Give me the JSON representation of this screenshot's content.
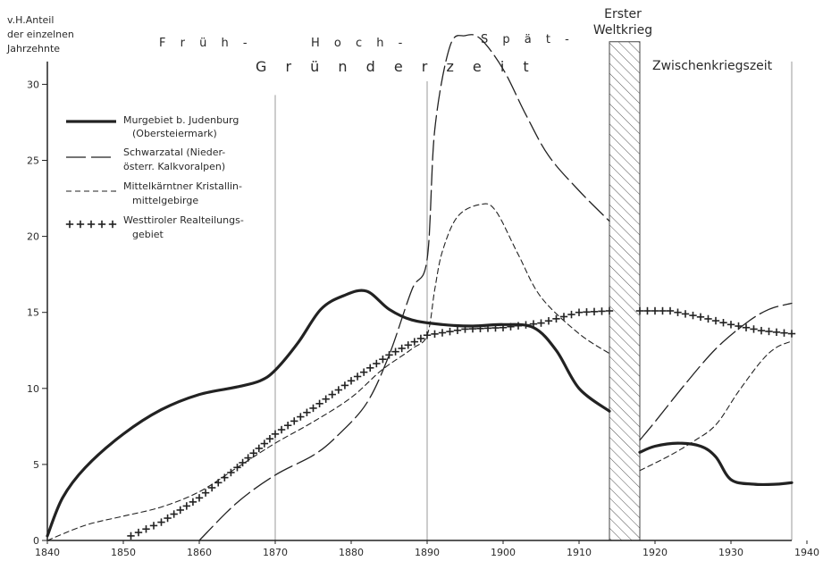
{
  "chart_data": {
    "type": "line",
    "ylabel_lines": [
      "v.H.Anteil",
      "der einzelnen",
      "Jahrzehnte"
    ],
    "xlim": [
      1840,
      1940
    ],
    "ylim": [
      0,
      33
    ],
    "x_ticks": [
      1840,
      1850,
      1860,
      1870,
      1880,
      1890,
      1900,
      1910,
      1920,
      1930,
      1940
    ],
    "y_ticks": [
      0,
      5,
      10,
      15,
      20,
      25,
      30
    ],
    "period_labels": {
      "frueh": "F r ü h -",
      "hoch": "H o c h -",
      "spaet": "S p ä t -",
      "gruenderzeit": "G r ü n d e r z e i t",
      "krieg_line1": "Erster",
      "krieg_line2": "Weltkrieg",
      "zwischen": "Zwischenkriegszeit"
    },
    "period_lines": [
      1870,
      1890
    ],
    "war_period": [
      1914,
      1918
    ],
    "series": [
      {
        "name_lines": [
          "Murgebiet b. Judenburg",
          "(Obersteiermark)"
        ],
        "style": "solid",
        "segments": [
          [
            [
              1840,
              0.3
            ],
            [
              1842,
              2.8
            ],
            [
              1845,
              4.8
            ],
            [
              1850,
              7.0
            ],
            [
              1855,
              8.6
            ],
            [
              1860,
              9.6
            ],
            [
              1865,
              10.1
            ],
            [
              1868,
              10.5
            ],
            [
              1870,
              11.2
            ],
            [
              1873,
              13.0
            ],
            [
              1876,
              15.2
            ],
            [
              1879,
              16.1
            ],
            [
              1882,
              16.4
            ],
            [
              1885,
              15.2
            ],
            [
              1888,
              14.5
            ],
            [
              1892,
              14.2
            ],
            [
              1896,
              14.1
            ],
            [
              1900,
              14.2
            ],
            [
              1904,
              14.0
            ],
            [
              1907,
              12.5
            ],
            [
              1910,
              10.0
            ],
            [
              1914,
              8.5
            ]
          ],
          [
            [
              1918,
              5.8
            ],
            [
              1920,
              6.2
            ],
            [
              1923,
              6.4
            ],
            [
              1926,
              6.2
            ],
            [
              1928,
              5.5
            ],
            [
              1930,
              4.0
            ],
            [
              1933,
              3.7
            ],
            [
              1936,
              3.7
            ],
            [
              1938,
              3.8
            ]
          ]
        ]
      },
      {
        "name_lines": [
          "Schwarzatal (Nieder-",
          "österr. Kalkvoralpen)"
        ],
        "style": "longdash",
        "segments": [
          [
            [
              1860,
              0
            ],
            [
              1865,
              2.5
            ],
            [
              1870,
              4.3
            ],
            [
              1875,
              5.6
            ],
            [
              1878,
              6.8
            ],
            [
              1882,
              9.0
            ],
            [
              1885,
              12.2
            ],
            [
              1888,
              16.5
            ],
            [
              1890,
              18.5
            ],
            [
              1891,
              27.0
            ],
            [
              1893,
              32.5
            ],
            [
              1895,
              33.2
            ],
            [
              1897,
              33.0
            ],
            [
              1900,
              31.0
            ],
            [
              1903,
              28.0
            ],
            [
              1906,
              25.3
            ],
            [
              1910,
              23.0
            ],
            [
              1914,
              21.0
            ]
          ],
          [
            [
              1918,
              6.6
            ],
            [
              1920,
              7.8
            ],
            [
              1924,
              10.3
            ],
            [
              1928,
              12.6
            ],
            [
              1932,
              14.3
            ],
            [
              1935,
              15.2
            ],
            [
              1938,
              15.6
            ]
          ]
        ]
      },
      {
        "name_lines": [
          "Mittelkärntner Kristallin-",
          "mittelgebirge"
        ],
        "style": "shortdash",
        "segments": [
          [
            [
              1840,
              0
            ],
            [
              1845,
              1.0
            ],
            [
              1850,
              1.6
            ],
            [
              1855,
              2.2
            ],
            [
              1860,
              3.2
            ],
            [
              1865,
              4.8
            ],
            [
              1870,
              6.4
            ],
            [
              1875,
              7.8
            ],
            [
              1880,
              9.4
            ],
            [
              1884,
              11.2
            ],
            [
              1888,
              12.6
            ],
            [
              1890,
              13.5
            ],
            [
              1891,
              16.5
            ],
            [
              1892,
              19.0
            ],
            [
              1894,
              21.3
            ],
            [
              1897,
              22.1
            ],
            [
              1899,
              21.7
            ],
            [
              1902,
              18.8
            ],
            [
              1905,
              16.0
            ],
            [
              1910,
              13.6
            ],
            [
              1914,
              12.3
            ]
          ],
          [
            [
              1918,
              4.6
            ],
            [
              1922,
              5.6
            ],
            [
              1925,
              6.5
            ],
            [
              1928,
              7.6
            ],
            [
              1931,
              9.8
            ],
            [
              1934,
              11.8
            ],
            [
              1936,
              12.7
            ],
            [
              1938,
              13.1
            ]
          ]
        ]
      },
      {
        "name_lines": [
          "Westtiroler Realteilungs-",
          "gebiet"
        ],
        "style": "cross",
        "segments": [
          [
            [
              1851,
              0.3
            ],
            [
              1855,
              1.2
            ],
            [
              1860,
              2.8
            ],
            [
              1865,
              4.8
            ],
            [
              1870,
              7.0
            ],
            [
              1875,
              8.7
            ],
            [
              1880,
              10.5
            ],
            [
              1885,
              12.2
            ],
            [
              1890,
              13.5
            ],
            [
              1895,
              13.9
            ],
            [
              1900,
              14.0
            ],
            [
              1905,
              14.3
            ],
            [
              1910,
              15.0
            ],
            [
              1914,
              15.1
            ]
          ],
          [
            [
              1918,
              15.1
            ],
            [
              1922,
              15.1
            ],
            [
              1926,
              14.7
            ],
            [
              1930,
              14.2
            ],
            [
              1934,
              13.8
            ],
            [
              1938,
              13.6
            ]
          ]
        ]
      }
    ]
  }
}
